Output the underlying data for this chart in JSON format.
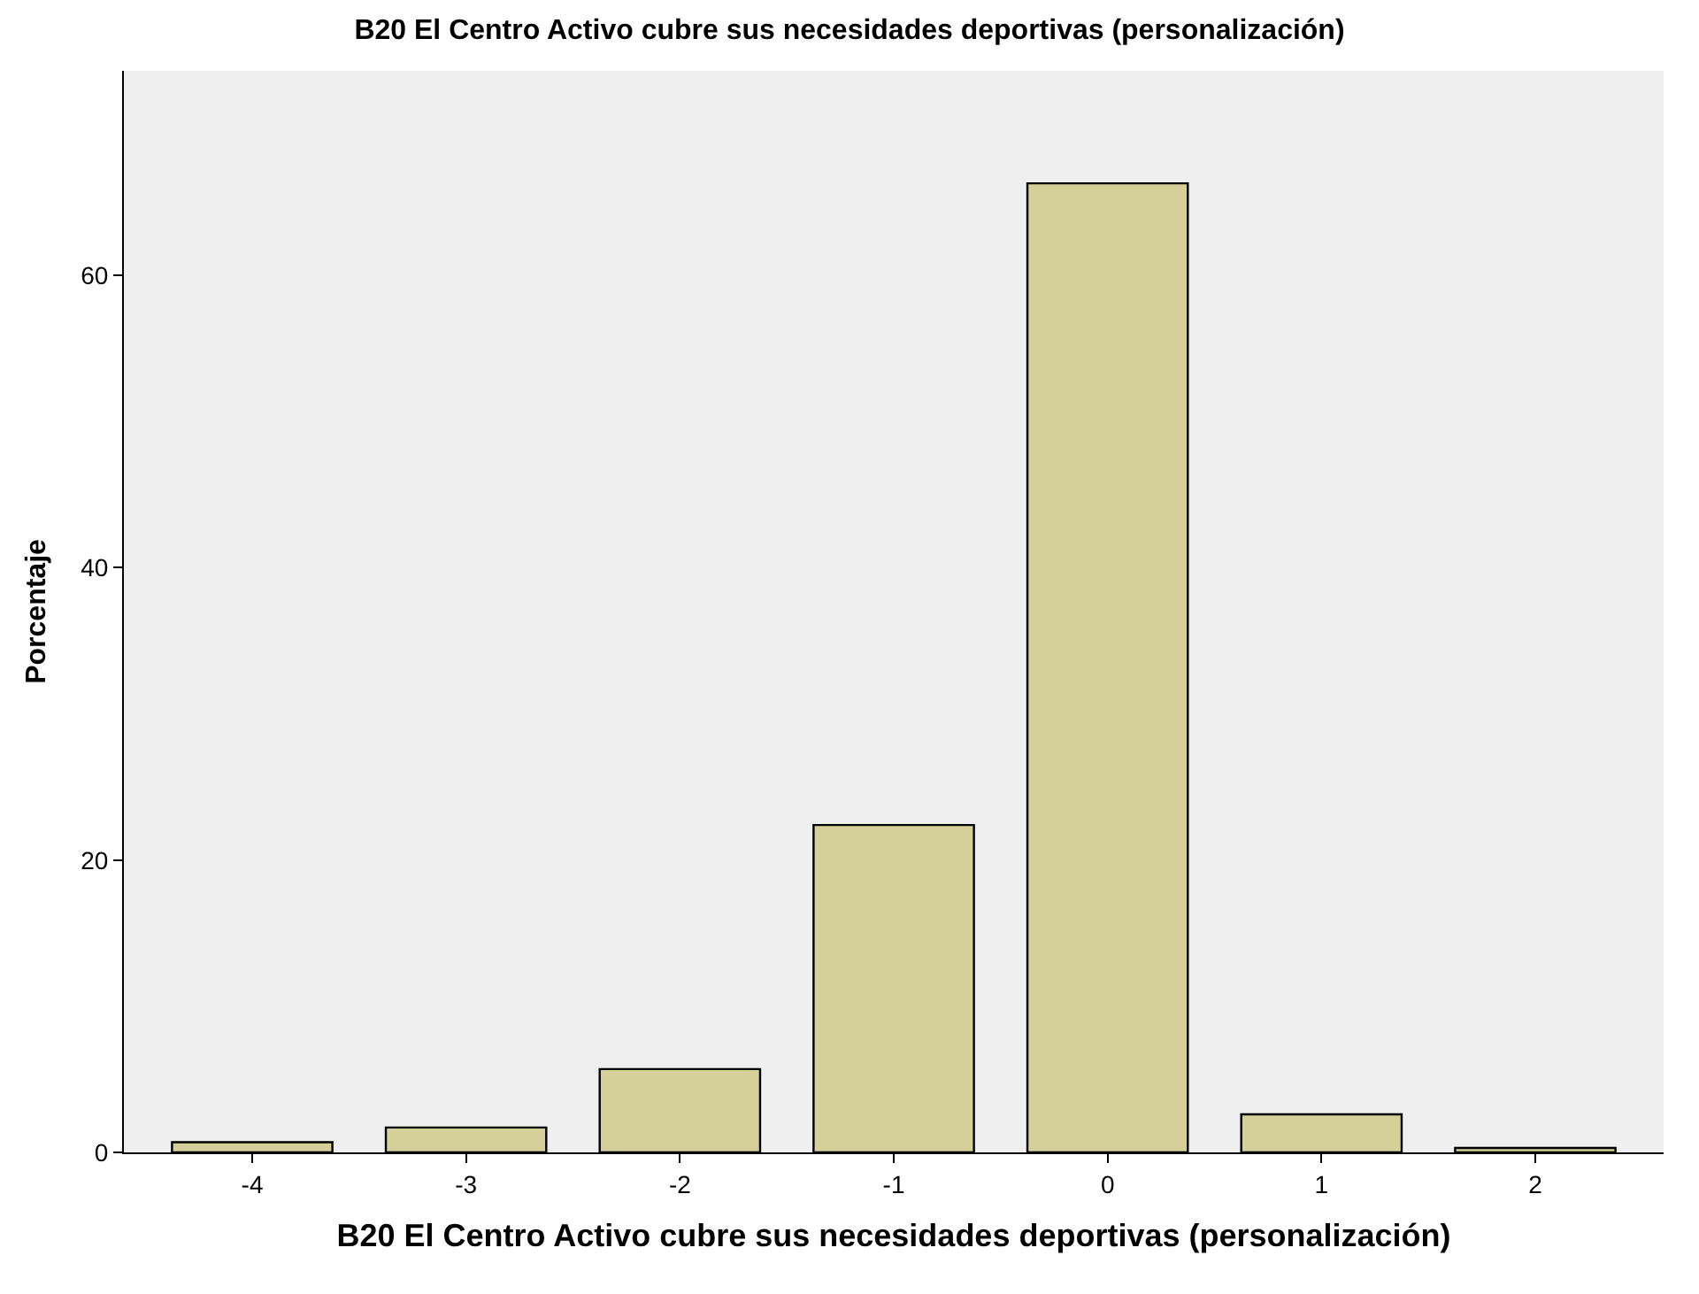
{
  "chart_data": {
    "type": "bar",
    "title": "B20 El Centro Activo cubre sus necesidades deportivas (personalización)",
    "xlabel": "B20 El Centro Activo cubre sus necesidades deportivas (personalización)",
    "ylabel": "Porcentaje",
    "categories": [
      "-4",
      "-3",
      "-2",
      "-1",
      "0",
      "1",
      "2"
    ],
    "values": [
      0.7,
      1.7,
      5.7,
      22.4,
      66.3,
      2.6,
      0.3
    ],
    "color": "#d5cf99",
    "ylim": [
      0,
      74
    ],
    "yticks": [
      0,
      20,
      40,
      60
    ],
    "grid": false,
    "legend": false
  }
}
